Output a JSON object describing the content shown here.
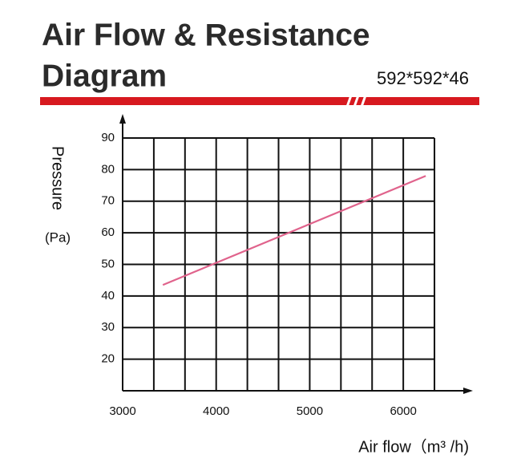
{
  "chart_data": {
    "type": "line",
    "title": [
      "Air Flow & Resistance",
      "Diagram"
    ],
    "subtitle": "592*592*46",
    "y_label": "Pressure",
    "y_unit": "(Pa)",
    "x_label": "Air flow（m³ /h)",
    "x": [
      3430,
      6240
    ],
    "series": [
      {
        "color": "#e0638c",
        "values": [
          43.5,
          78
        ]
      }
    ],
    "xlim": [
      3000,
      6333
    ],
    "xticks": [
      3000,
      4000,
      5000,
      6000
    ],
    "ylim": [
      10,
      90
    ],
    "yticks": [
      20,
      30,
      40,
      50,
      60,
      70,
      80,
      90
    ],
    "grid": true
  }
}
